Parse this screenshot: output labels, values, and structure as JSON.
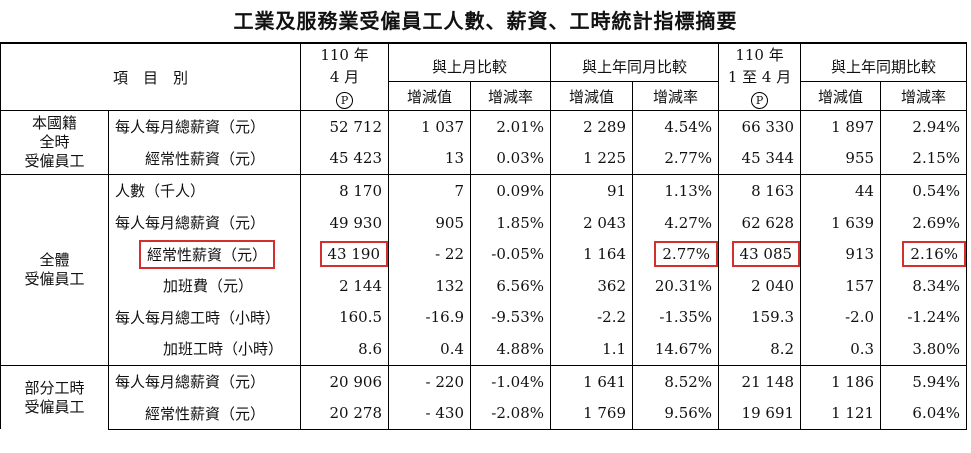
{
  "title": "工業及服務業受僱員工人數、薪資、工時統計指標摘要",
  "header": {
    "item": "項　目　別",
    "current": [
      "110 年",
      "4 月",
      "P"
    ],
    "comparisons": [
      "與上月比較",
      "與上年同月比較"
    ],
    "cumulative": [
      "110 年",
      "1 至 4 月",
      "P"
    ],
    "cumulative_comparison": "與上年同期比較",
    "sub": [
      "增減值",
      "增減率"
    ]
  },
  "groups": [
    {
      "label": [
        "本國籍",
        "全時",
        "受僱員工"
      ],
      "rows": [
        {
          "item": "每人每月總薪資（元）",
          "values": [
            "52 712",
            "1 037",
            "2.01%",
            "2 289",
            "4.54%",
            "66 330",
            "1 897",
            "2.94%"
          ]
        },
        {
          "item": "經常性薪資（元）",
          "values": [
            "45 423",
            "13",
            "0.03%",
            "1 225",
            "2.77%",
            "45 344",
            "955",
            "2.15%"
          ]
        }
      ]
    },
    {
      "label": [
        "全體",
        "受僱員工"
      ],
      "rows": [
        {
          "item": "人數（千人）",
          "values": [
            "8 170",
            "7",
            "0.09%",
            "91",
            "1.13%",
            "8 163",
            "44",
            "0.54%"
          ]
        },
        {
          "item": "每人每月總薪資（元）",
          "values": [
            "49 930",
            "905",
            "1.85%",
            "2 043",
            "4.27%",
            "62 628",
            "1 639",
            "2.69%"
          ]
        },
        {
          "item": "經常性薪資（元）",
          "values": [
            "43 190",
            "- 22",
            "-0.05%",
            "1 164",
            "2.77%",
            "43 085",
            "913",
            "2.16%"
          ]
        },
        {
          "item": "加班費（元）",
          "values": [
            "2 144",
            "132",
            "6.56%",
            "362",
            "20.31%",
            "2 040",
            "157",
            "8.34%"
          ]
        },
        {
          "item": "每人每月總工時（小時）",
          "values": [
            "160.5",
            "-16.9",
            "-9.53%",
            "-2.2",
            "-1.35%",
            "159.3",
            "-2.0",
            "-1.24%"
          ]
        },
        {
          "item": "加班工時（小時）",
          "values": [
            "8.6",
            "0.4",
            "4.88%",
            "1.1",
            "14.67%",
            "8.2",
            "0.3",
            "3.80%"
          ]
        }
      ]
    },
    {
      "label": [
        "部分工時",
        "受僱員工"
      ],
      "rows": [
        {
          "item": "每人每月總薪資（元）",
          "values": [
            "20 906",
            "- 220",
            "-1.04%",
            "1 641",
            "8.52%",
            "21 148",
            "1 186",
            "5.94%"
          ]
        },
        {
          "item": "經常性薪資（元）",
          "values": [
            "20 278",
            "- 430",
            "-2.08%",
            "1 769",
            "9.56%",
            "19 691",
            "1 121",
            "6.04%"
          ]
        }
      ]
    }
  ]
}
